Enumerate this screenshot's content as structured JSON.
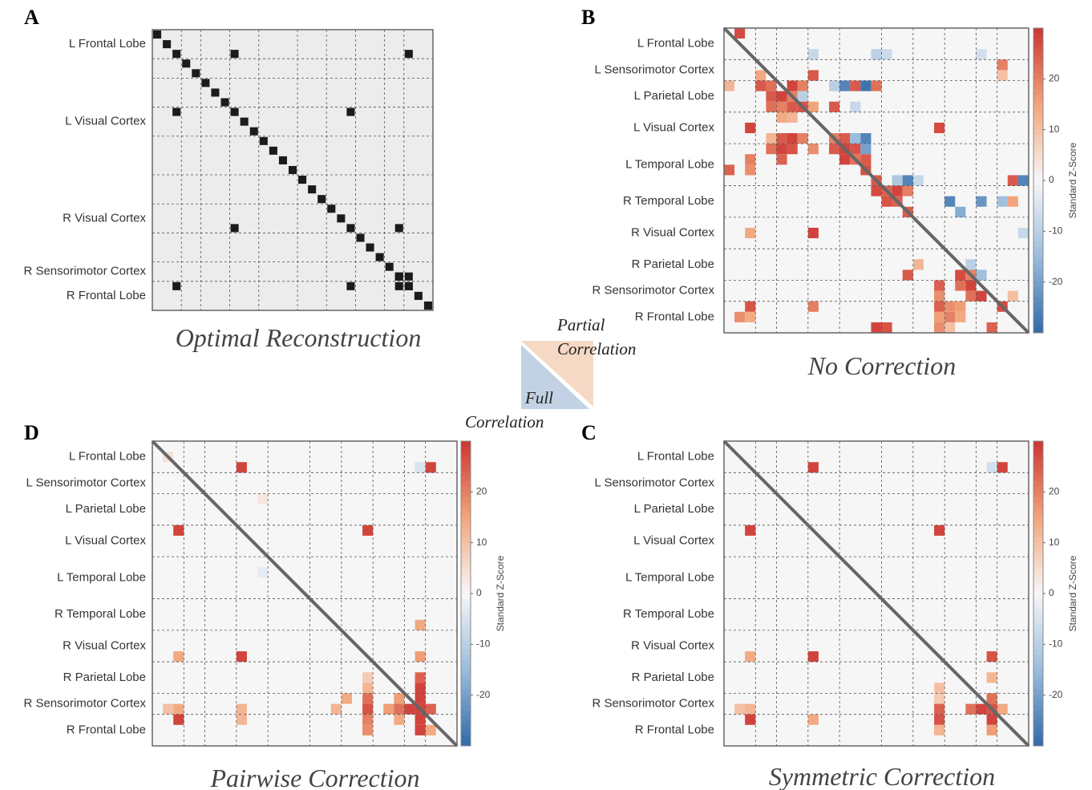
{
  "chart_data": [
    {
      "type": "heatmap",
      "label": "A",
      "title": "Optimal Reconstruction",
      "size": 29,
      "diagonal_cells": true,
      "color": "#1b1b1b",
      "row_labels": [
        "L Frontal Lobe",
        null,
        null,
        "L Visual Cortex",
        null,
        null,
        "R Visual Cortex",
        null,
        "R Sensorimotor Cortex",
        "R Frontal Lobe"
      ],
      "cells": [
        [
          2,
          8
        ],
        [
          2,
          26
        ],
        [
          8,
          2
        ],
        [
          8,
          20
        ],
        [
          20,
          8
        ],
        [
          20,
          25
        ],
        [
          26,
          2
        ],
        [
          26,
          20
        ],
        [
          25,
          25
        ],
        [
          25,
          26
        ],
        [
          26,
          25
        ],
        [
          26,
          26
        ]
      ]
    },
    {
      "type": "heatmap",
      "label": "B",
      "title": "No Correction",
      "size": 29,
      "diagonal_line": true,
      "row_labels": [
        "L Frontal Lobe",
        "L Sensorimotor Cortex",
        "L Parietal Lobe",
        "L Visual Cortex",
        "L Temporal Lobe",
        "R Temporal Lobe",
        "R Visual Cortex",
        "R Parietal Lobe",
        "R Sensorimotor Cortex",
        "R Frontal Lobe"
      ],
      "vlim": [
        -30,
        30
      ],
      "colormap": [
        "#2f6aa8",
        "#9bbcdc",
        "#f7f7f7",
        "#f2a57b",
        "#cc3533"
      ],
      "colorbar": {
        "label": "Standard Z-Score",
        "ticks": [
          -20,
          -10,
          0,
          10,
          20
        ]
      },
      "cells": [
        [
          0,
          1,
          27
        ],
        [
          2,
          8,
          -8
        ],
        [
          2,
          14,
          -10
        ],
        [
          2,
          15,
          -7
        ],
        [
          2,
          24,
          -6
        ],
        [
          3,
          26,
          20
        ],
        [
          4,
          26,
          10
        ],
        [
          4,
          8,
          25
        ],
        [
          4,
          3,
          14
        ],
        [
          5,
          0,
          12
        ],
        [
          5,
          3,
          25
        ],
        [
          5,
          4,
          22
        ],
        [
          5,
          6,
          28
        ],
        [
          5,
          7,
          20
        ],
        [
          5,
          10,
          -10
        ],
        [
          5,
          11,
          -25
        ],
        [
          5,
          12,
          25
        ],
        [
          5,
          13,
          -28
        ],
        [
          5,
          14,
          22
        ],
        [
          6,
          4,
          25
        ],
        [
          6,
          5,
          28
        ],
        [
          6,
          6,
          20
        ],
        [
          6,
          7,
          -10
        ],
        [
          7,
          4,
          22
        ],
        [
          7,
          5,
          20
        ],
        [
          7,
          6,
          25
        ],
        [
          7,
          7,
          26
        ],
        [
          7,
          8,
          15
        ],
        [
          7,
          10,
          25
        ],
        [
          7,
          12,
          -8
        ],
        [
          8,
          5,
          14
        ],
        [
          8,
          6,
          12
        ],
        [
          9,
          2,
          28
        ],
        [
          9,
          20,
          27
        ],
        [
          10,
          4,
          12
        ],
        [
          10,
          5,
          25
        ],
        [
          10,
          6,
          28
        ],
        [
          10,
          7,
          20
        ],
        [
          10,
          10,
          20
        ],
        [
          10,
          11,
          25
        ],
        [
          10,
          12,
          -15
        ],
        [
          10,
          13,
          -25
        ],
        [
          11,
          4,
          22
        ],
        [
          11,
          5,
          28
        ],
        [
          11,
          6,
          26
        ],
        [
          11,
          8,
          18
        ],
        [
          11,
          10,
          25
        ],
        [
          11,
          11,
          28
        ],
        [
          11,
          12,
          26
        ],
        [
          11,
          13,
          -20
        ],
        [
          12,
          2,
          20
        ],
        [
          12,
          5,
          24
        ],
        [
          12,
          11,
          28
        ],
        [
          12,
          12,
          22
        ],
        [
          12,
          13,
          25
        ],
        [
          13,
          0,
          24
        ],
        [
          13,
          2,
          18
        ],
        [
          13,
          13,
          26
        ],
        [
          14,
          14,
          25
        ],
        [
          14,
          16,
          -12
        ],
        [
          14,
          17,
          -25
        ],
        [
          14,
          18,
          -8
        ],
        [
          14,
          28,
          -25
        ],
        [
          14,
          27,
          25
        ],
        [
          15,
          14,
          27
        ],
        [
          15,
          15,
          24
        ],
        [
          15,
          16,
          28
        ],
        [
          15,
          17,
          20
        ],
        [
          16,
          15,
          26
        ],
        [
          16,
          16,
          24
        ],
        [
          16,
          21,
          -25
        ],
        [
          16,
          24,
          -22
        ],
        [
          16,
          26,
          -14
        ],
        [
          16,
          27,
          15
        ],
        [
          17,
          17,
          25
        ],
        [
          17,
          22,
          -18
        ],
        [
          19,
          2,
          14
        ],
        [
          19,
          8,
          28
        ],
        [
          19,
          28,
          -8
        ],
        [
          22,
          18,
          12
        ],
        [
          22,
          23,
          -10
        ],
        [
          23,
          17,
          25
        ],
        [
          23,
          22,
          27
        ],
        [
          23,
          23,
          20
        ],
        [
          23,
          24,
          -14
        ],
        [
          24,
          20,
          24
        ],
        [
          24,
          22,
          22
        ],
        [
          24,
          23,
          28
        ],
        [
          25,
          20,
          18
        ],
        [
          25,
          23,
          22
        ],
        [
          25,
          24,
          28
        ],
        [
          25,
          27,
          10
        ],
        [
          26,
          2,
          26
        ],
        [
          26,
          8,
          20
        ],
        [
          26,
          20,
          24
        ],
        [
          26,
          21,
          18
        ],
        [
          26,
          22,
          16
        ],
        [
          26,
          26,
          27
        ],
        [
          27,
          1,
          18
        ],
        [
          27,
          2,
          14
        ],
        [
          27,
          20,
          16
        ],
        [
          27,
          21,
          20
        ],
        [
          27,
          22,
          14
        ],
        [
          28,
          14,
          28
        ],
        [
          28,
          15,
          26
        ],
        [
          28,
          20,
          18
        ],
        [
          28,
          25,
          24
        ],
        [
          28,
          21,
          10
        ]
      ]
    },
    {
      "type": "heatmap",
      "label": "C",
      "title": "Symmetric Correction",
      "size": 29,
      "diagonal_line": true,
      "row_labels": [
        "L Frontal Lobe",
        "L Sensorimotor Cortex",
        "L Parietal Lobe",
        "L Visual Cortex",
        "L Temporal Lobe",
        "R Temporal Lobe",
        "R Visual Cortex",
        "R Parietal Lobe",
        "R Sensorimotor Cortex",
        "R Frontal Lobe"
      ],
      "vlim": [
        -30,
        30
      ],
      "colormap": [
        "#2f6aa8",
        "#9bbcdc",
        "#f7f7f7",
        "#f2a57b",
        "#cc3533"
      ],
      "colorbar": {
        "label": "Standard Z-Score",
        "ticks": [
          -20,
          -10,
          0,
          10,
          20
        ]
      },
      "cells": [
        [
          2,
          8,
          28
        ],
        [
          2,
          26,
          28
        ],
        [
          2,
          25,
          -6
        ],
        [
          8,
          2,
          28
        ],
        [
          8,
          20,
          28
        ],
        [
          20,
          2,
          14
        ],
        [
          20,
          8,
          28
        ],
        [
          20,
          25,
          26
        ],
        [
          22,
          25,
          12
        ],
        [
          23,
          20,
          10
        ],
        [
          24,
          25,
          22
        ],
        [
          24,
          20,
          8
        ],
        [
          25,
          1,
          10
        ],
        [
          25,
          2,
          12
        ],
        [
          25,
          20,
          24
        ],
        [
          25,
          23,
          22
        ],
        [
          25,
          24,
          28
        ],
        [
          25,
          25,
          26
        ],
        [
          25,
          26,
          14
        ],
        [
          26,
          2,
          28
        ],
        [
          26,
          8,
          14
        ],
        [
          26,
          20,
          26
        ],
        [
          26,
          25,
          28
        ],
        [
          27,
          20,
          12
        ],
        [
          27,
          25,
          16
        ]
      ]
    },
    {
      "type": "heatmap",
      "label": "D",
      "title": "Pairwise Correction",
      "size": 29,
      "diagonal_line": true,
      "row_labels": [
        "L Frontal Lobe",
        "L Sensorimotor Cortex",
        "L Parietal Lobe",
        "L Visual Cortex",
        "L Temporal Lobe",
        "R Temporal Lobe",
        "R Visual Cortex",
        "R Parietal Lobe",
        "R Sensorimotor Cortex",
        "R Frontal Lobe"
      ],
      "vlim": [
        -30,
        30
      ],
      "colormap": [
        "#2f6aa8",
        "#9bbcdc",
        "#f7f7f7",
        "#f2a57b",
        "#cc3533"
      ],
      "colorbar": {
        "label": "Standard Z-Score",
        "ticks": [
          -20,
          -10,
          0,
          10,
          20
        ]
      },
      "cells": [
        [
          1,
          1,
          4
        ],
        [
          5,
          10,
          3
        ],
        [
          12,
          10,
          -3
        ],
        [
          2,
          8,
          28
        ],
        [
          2,
          26,
          28
        ],
        [
          2,
          25,
          -5
        ],
        [
          8,
          2,
          28
        ],
        [
          8,
          20,
          28
        ],
        [
          17,
          25,
          14
        ],
        [
          20,
          2,
          14
        ],
        [
          20,
          8,
          28
        ],
        [
          20,
          25,
          16
        ],
        [
          22,
          20,
          8
        ],
        [
          22,
          25,
          24
        ],
        [
          23,
          20,
          12
        ],
        [
          23,
          25,
          28
        ],
        [
          24,
          18,
          14
        ],
        [
          24,
          20,
          22
        ],
        [
          24,
          23,
          16
        ],
        [
          24,
          25,
          28
        ],
        [
          25,
          1,
          10
        ],
        [
          25,
          2,
          14
        ],
        [
          25,
          8,
          12
        ],
        [
          25,
          17,
          12
        ],
        [
          25,
          20,
          26
        ],
        [
          25,
          22,
          16
        ],
        [
          25,
          23,
          22
        ],
        [
          25,
          24,
          28
        ],
        [
          25,
          25,
          28
        ],
        [
          25,
          26,
          24
        ],
        [
          26,
          2,
          28
        ],
        [
          26,
          8,
          12
        ],
        [
          26,
          20,
          20
        ],
        [
          26,
          23,
          14
        ],
        [
          26,
          25,
          28
        ],
        [
          27,
          20,
          18
        ],
        [
          27,
          25,
          28
        ],
        [
          27,
          26,
          14
        ]
      ]
    }
  ],
  "legend": {
    "upper": [
      "Partial",
      "Correlation"
    ],
    "lower": [
      "Full",
      "Correlation"
    ]
  }
}
